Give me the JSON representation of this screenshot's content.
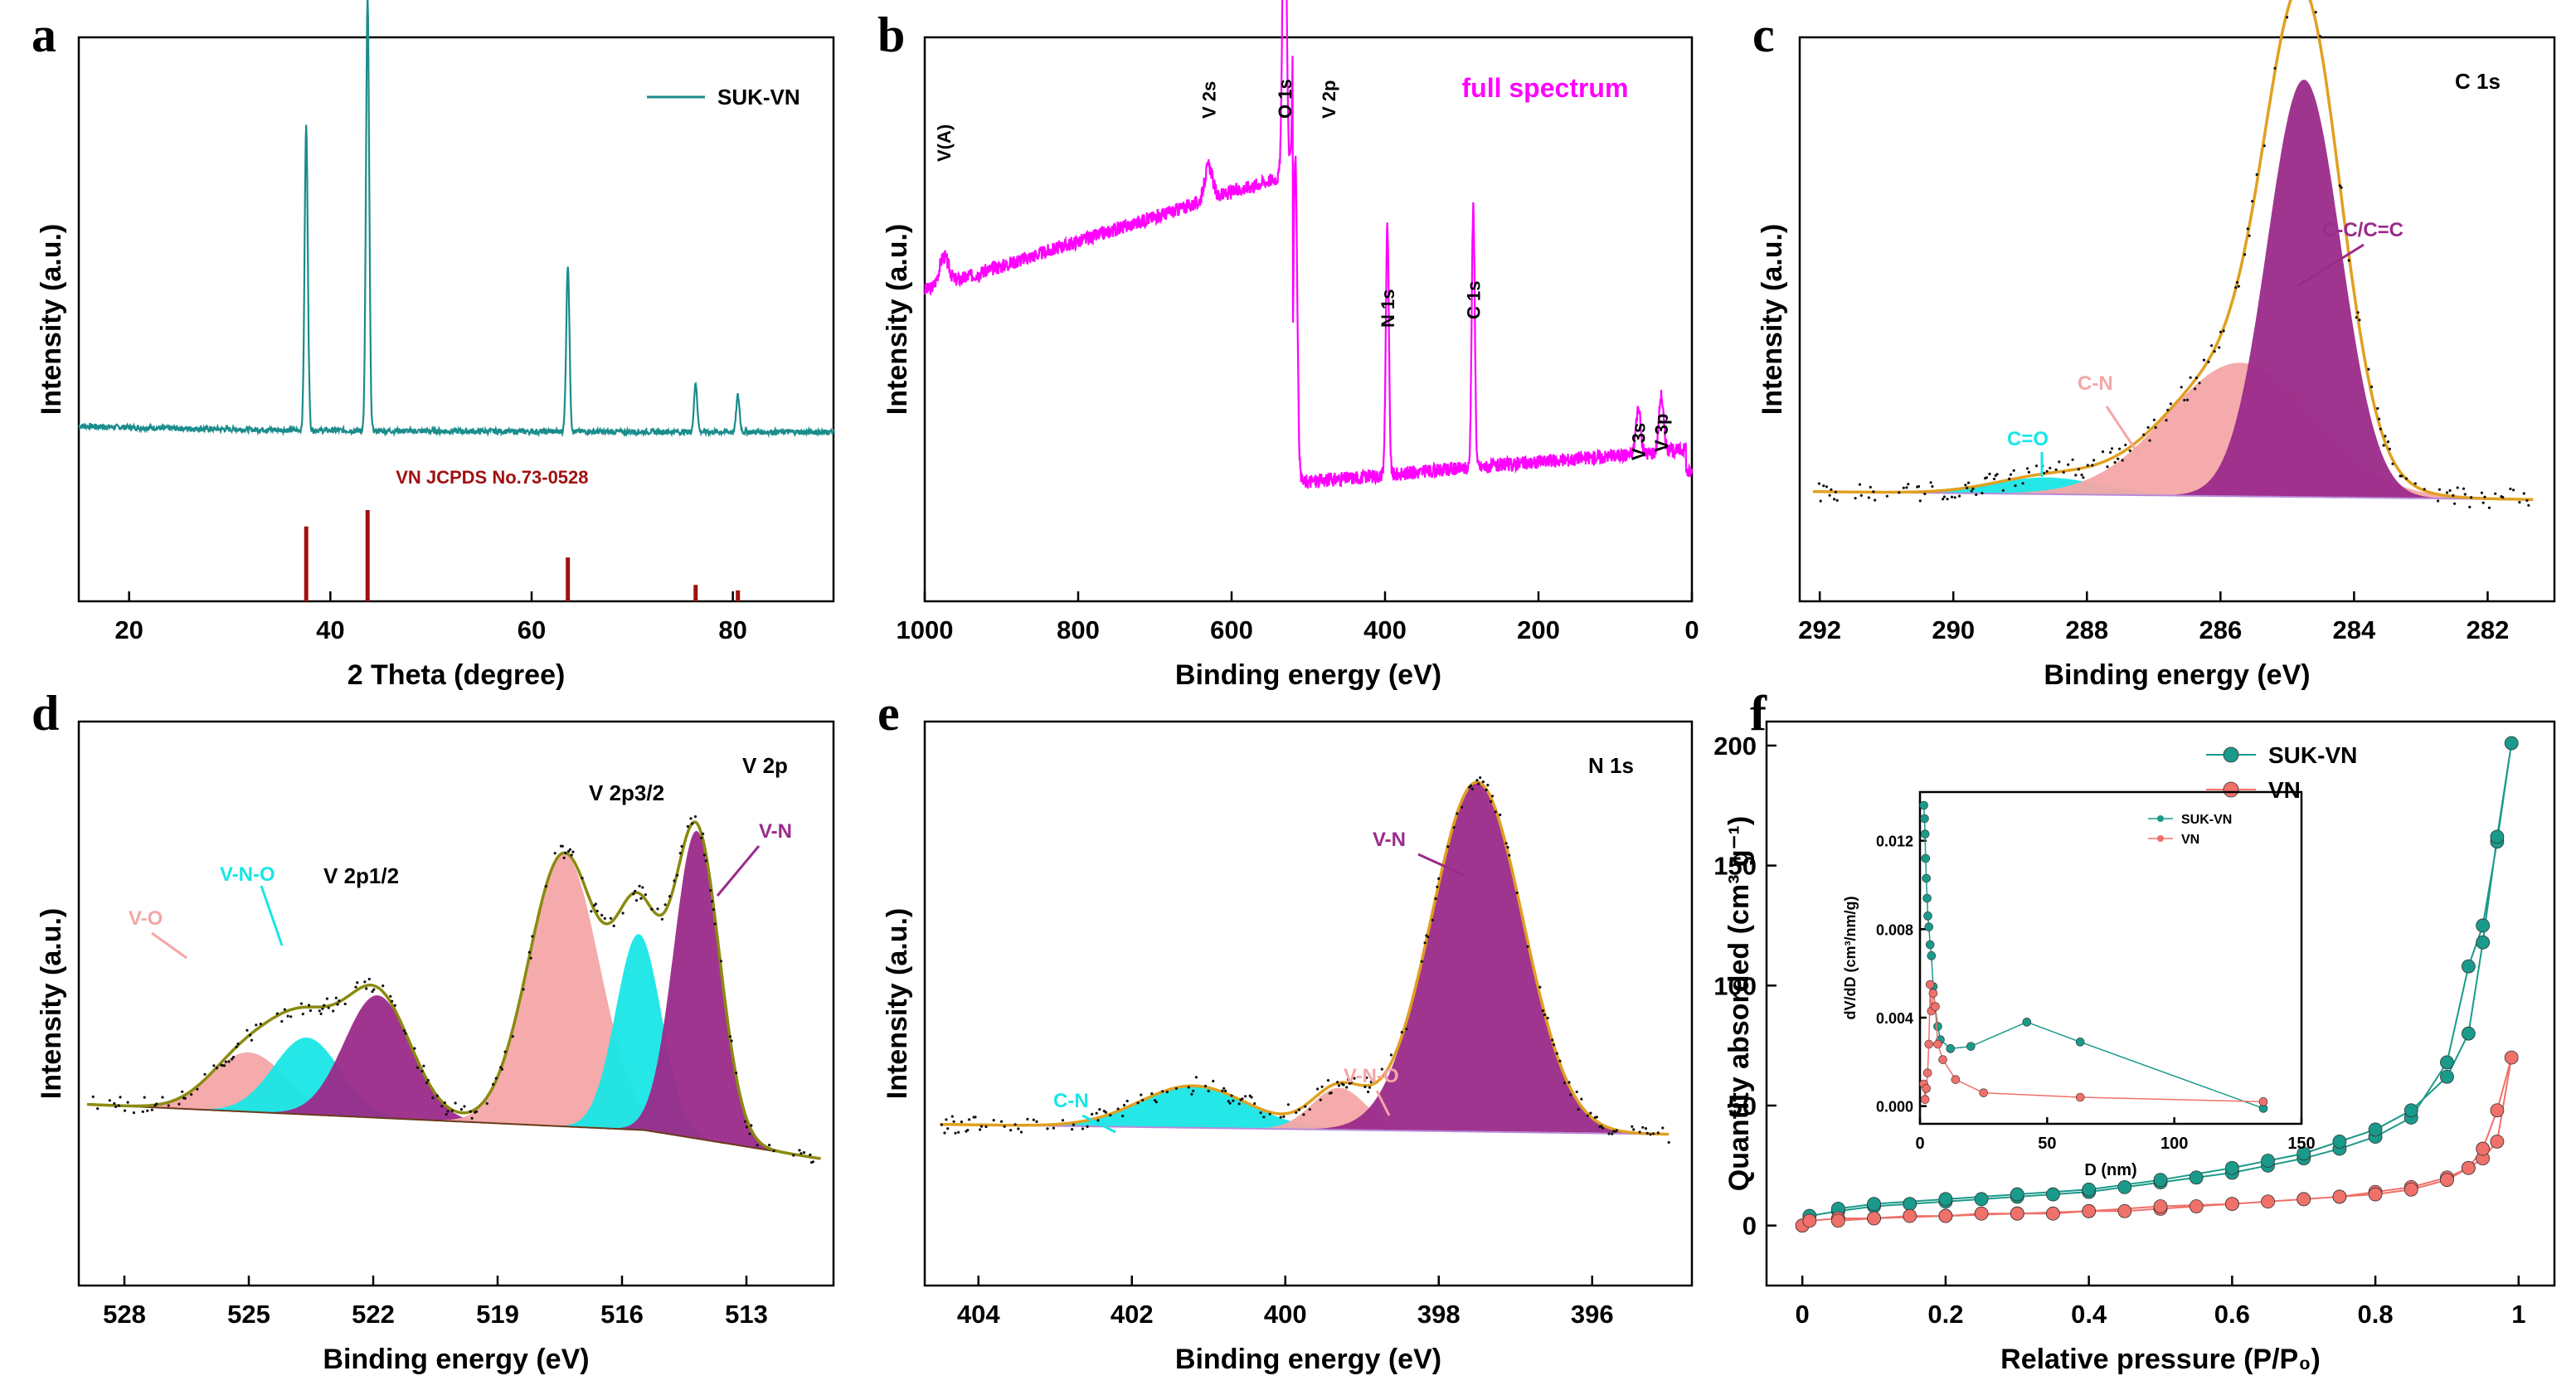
{
  "chart_data": [
    {
      "panel": "a",
      "type": "line",
      "title": "",
      "xlabel": "2 Theta (degree)",
      "ylabel": "Intensity (a.u.)",
      "xlim": [
        15,
        90
      ],
      "xticks": [
        20,
        40,
        60,
        80
      ],
      "legend": {
        "entries": [
          "SUK-VN"
        ],
        "placement": "top-right"
      },
      "series": [
        {
          "name": "SUK-VN",
          "color": "#1b8c8c",
          "baseline": 0.22,
          "peaks": [
            {
              "x": 37.6,
              "h": 1.0
            },
            {
              "x": 43.7,
              "h": 1.42
            },
            {
              "x": 63.6,
              "h": 0.55
            },
            {
              "x": 76.3,
              "h": 0.16
            },
            {
              "x": 80.5,
              "h": 0.12
            }
          ]
        }
      ],
      "reference": {
        "label": "VN JCPDS No.73-0528",
        "color": "#a01010",
        "lines": [
          {
            "x": 37.6,
            "rel": 0.82
          },
          {
            "x": 43.7,
            "rel": 1.0
          },
          {
            "x": 63.6,
            "rel": 0.48
          },
          {
            "x": 76.3,
            "rel": 0.18
          },
          {
            "x": 80.5,
            "rel": 0.12
          }
        ]
      }
    },
    {
      "panel": "b",
      "type": "line",
      "title": "full spectrum",
      "xlabel": "Binding energy (eV)",
      "ylabel": "Intensity (a.u.)",
      "xlim": [
        1000,
        0
      ],
      "xticks": [
        1000,
        800,
        600,
        400,
        200,
        0
      ],
      "series": [
        {
          "name": "full spectrum",
          "color": "#ff00ff"
        }
      ],
      "annotations": [
        {
          "text": "V(A)",
          "x": 975
        },
        {
          "text": "V 2s",
          "x": 630
        },
        {
          "text": "O 1s",
          "x": 531
        },
        {
          "text": "V 2p",
          "x": 517
        },
        {
          "text": "N 1s",
          "x": 397
        },
        {
          "text": "C 1s",
          "x": 285
        },
        {
          "text": "V 3s",
          "x": 70
        },
        {
          "text": "V 3p",
          "x": 40
        }
      ]
    },
    {
      "panel": "c",
      "type": "area",
      "title": "C 1s",
      "xlabel": "Binding energy (eV)",
      "ylabel": "Intensity (a.u.)",
      "xlim": [
        292.3,
        281
      ],
      "xticks": [
        292,
        290,
        288,
        286,
        284,
        282
      ],
      "series": [
        {
          "name": "C=O",
          "center": 288.6,
          "height": 0.04,
          "width": 0.8,
          "color": "#19e6e6"
        },
        {
          "name": "C-N",
          "center": 285.7,
          "height": 0.32,
          "width": 1.1,
          "color": "#f4a6a6"
        },
        {
          "name": "C-C/C=C",
          "center": 284.75,
          "height": 1.0,
          "width": 0.55,
          "color": "#9b2a8a"
        }
      ],
      "envelope_color": "#e0a020"
    },
    {
      "panel": "d",
      "type": "area",
      "title": "V 2p",
      "xlabel": "Binding energy (eV)",
      "ylabel": "Intensity (a.u.)",
      "xlim": [
        529.1,
        510.9
      ],
      "xticks": [
        528,
        525,
        522,
        519,
        516,
        513
      ],
      "series": [
        {
          "name": "V-O",
          "center": 525.0,
          "height": 0.17,
          "width": 0.9,
          "color": "#f4a6a6"
        },
        {
          "name": "V-N-O",
          "center": 523.6,
          "height": 0.22,
          "width": 0.8,
          "color": "#19e6e6"
        },
        {
          "name": "V-N",
          "center": 521.9,
          "height": 0.35,
          "width": 0.8,
          "color": "#9b2a8a"
        },
        {
          "name": "V-O",
          "center": 517.4,
          "height": 0.78,
          "width": 0.85,
          "color": "#f4a6a6"
        },
        {
          "name": "V-N-O",
          "center": 515.6,
          "height": 0.56,
          "width": 0.55,
          "color": "#19e6e6"
        },
        {
          "name": "V-N",
          "center": 514.2,
          "height": 0.88,
          "width": 0.55,
          "color": "#9b2a8a"
        }
      ],
      "labels": [
        "V 2p1/2",
        "V 2p3/2"
      ],
      "envelope_color": "#8a8a10"
    },
    {
      "panel": "e",
      "type": "area",
      "title": "N 1s",
      "xlabel": "Binding energy (eV)",
      "ylabel": "Intensity (a.u.)",
      "xlim": [
        404.7,
        394.7
      ],
      "xticks": [
        404,
        402,
        400,
        398,
        396
      ],
      "series": [
        {
          "name": "C-N",
          "center": 401.2,
          "height": 0.12,
          "width": 0.7,
          "color": "#19e6e6"
        },
        {
          "name": "V-N-O",
          "center": 399.3,
          "height": 0.12,
          "width": 0.35,
          "color": "#f4a6a6"
        },
        {
          "name": "V-N",
          "center": 397.5,
          "height": 1.0,
          "width": 0.6,
          "color": "#9b2a8a"
        }
      ],
      "envelope_color": "#e0a020"
    },
    {
      "panel": "f",
      "type": "scatter",
      "title": "",
      "xlabel": "Relative pressure (P/P₀)",
      "ylabel": "Quantity absorded (cm³ g⁻¹)",
      "xlim": [
        -0.05,
        1.05
      ],
      "ylim": [
        -25,
        210
      ],
      "xticks": [
        0.0,
        0.2,
        0.4,
        0.6,
        0.8,
        1.0
      ],
      "yticks": [
        0,
        50,
        100,
        150,
        200
      ],
      "legend": {
        "entries": [
          "SUK-VN",
          "VN"
        ],
        "placement": "top-right"
      },
      "series": [
        {
          "name": "SUK-VN",
          "color": "#1a9a8a",
          "x": [
            0.0,
            0.01,
            0.05,
            0.1,
            0.15,
            0.2,
            0.25,
            0.3,
            0.35,
            0.4,
            0.45,
            0.5,
            0.55,
            0.6,
            0.65,
            0.7,
            0.75,
            0.8,
            0.85,
            0.9,
            0.93,
            0.95,
            0.97,
            0.99,
            0.97,
            0.95,
            0.93,
            0.9,
            0.85,
            0.8,
            0.75,
            0.7,
            0.65,
            0.6,
            0.5,
            0.4,
            0.3,
            0.2,
            0.1,
            0.05
          ],
          "y": [
            0,
            4,
            6,
            8,
            9,
            10,
            11,
            12,
            13,
            14,
            16,
            18,
            20,
            22,
            25,
            28,
            32,
            37,
            45,
            68,
            108,
            125,
            160,
            201,
            162,
            118,
            80,
            62,
            48,
            40,
            35,
            30,
            27,
            24,
            19,
            15,
            13,
            11,
            9,
            7
          ]
        },
        {
          "name": "VN",
          "color": "#f0706a",
          "x": [
            0.0,
            0.01,
            0.05,
            0.1,
            0.15,
            0.2,
            0.25,
            0.3,
            0.35,
            0.4,
            0.45,
            0.5,
            0.55,
            0.6,
            0.65,
            0.7,
            0.75,
            0.8,
            0.85,
            0.9,
            0.93,
            0.95,
            0.97,
            0.99,
            0.97,
            0.95,
            0.93,
            0.9,
            0.85,
            0.8,
            0.75,
            0.7,
            0.6,
            0.5,
            0.4,
            0.3,
            0.2,
            0.1,
            0.05
          ],
          "y": [
            0,
            2,
            3,
            3,
            4,
            4,
            5,
            5,
            5,
            6,
            6,
            7,
            8,
            9,
            10,
            11,
            12,
            14,
            16,
            20,
            24,
            28,
            35,
            70,
            48,
            32,
            24,
            19,
            15,
            13,
            12,
            11,
            9,
            8,
            6,
            5,
            4,
            3,
            2
          ]
        }
      ],
      "inset": {
        "xlabel": "D (nm)",
        "ylabel": "dV/dD (cm³/nm/g)",
        "xlim": [
          0,
          150
        ],
        "ylim": [
          -0.0008,
          0.0142
        ],
        "xticks": [
          0,
          50,
          100,
          150
        ],
        "yticks": [
          0.0,
          0.004,
          0.008,
          0.012
        ],
        "ytick_labels": [
          "0.000",
          "0.004",
          "0.008",
          "0.012"
        ],
        "legend": {
          "entries": [
            "SUK-VN",
            "VN"
          ],
          "placement": "top-right"
        },
        "series": [
          {
            "name": "SUK-VN",
            "color": "#1a9a8a",
            "x": [
              1.5,
              1.8,
              2.0,
              2.2,
              2.5,
              2.8,
              3.1,
              3.5,
              4.0,
              4.5,
              5.2,
              6.0,
              7.0,
              8.0,
              12.0,
              20.0,
              42.0,
              63.0,
              135.0
            ],
            "y": [
              0.0136,
              0.013,
              0.0123,
              0.0112,
              0.0103,
              0.0094,
              0.0086,
              0.0081,
              0.0073,
              0.0068,
              0.0054,
              0.0045,
              0.0036,
              0.003,
              0.0026,
              0.0027,
              0.0038,
              0.0029,
              -0.0001
            ]
          },
          {
            "name": "VN",
            "color": "#f0706a",
            "x": [
              1.5,
              2.0,
              2.5,
              3.0,
              3.5,
              4.0,
              4.5,
              5.2,
              6.0,
              7.0,
              9.0,
              14.0,
              25.0,
              63.0,
              135.0
            ],
            "y": [
              0.001,
              0.0003,
              0.0008,
              0.0015,
              0.0028,
              0.0055,
              0.0043,
              0.0051,
              0.0045,
              0.0028,
              0.0021,
              0.0012,
              0.0006,
              0.0004,
              0.0002
            ]
          }
        ]
      }
    }
  ]
}
